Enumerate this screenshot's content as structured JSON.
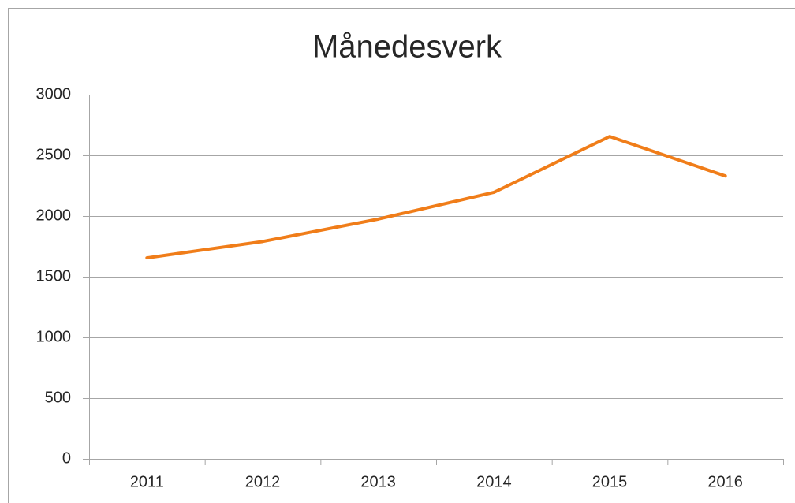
{
  "chart_data": {
    "type": "line",
    "title": "Månedesverk",
    "categories": [
      "2011",
      "2012",
      "2013",
      "2014",
      "2015",
      "2016"
    ],
    "values": [
      1655,
      1790,
      1975,
      2195,
      2655,
      2330
    ],
    "color": "#f07d19",
    "ylim": [
      0,
      3000
    ],
    "yticks": [
      0,
      500,
      1000,
      1500,
      2000,
      2500,
      3000
    ],
    "grid": true
  }
}
